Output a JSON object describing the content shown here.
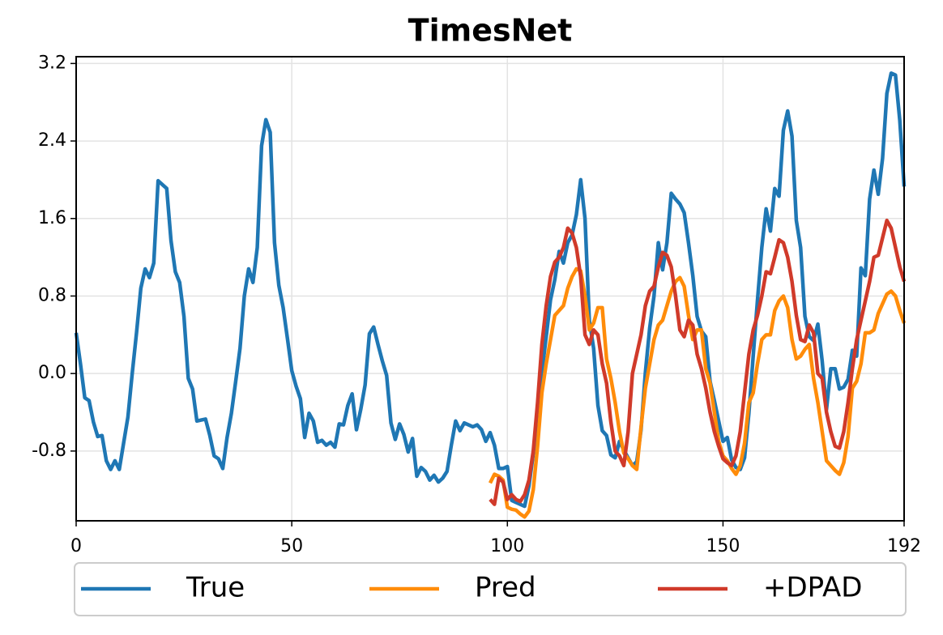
{
  "chart_data": {
    "type": "line",
    "title": "TimesNet",
    "x": [
      0,
      1,
      2,
      3,
      4,
      5,
      6,
      7,
      8,
      9,
      10,
      11,
      12,
      13,
      14,
      15,
      16,
      17,
      18,
      19,
      20,
      21,
      22,
      23,
      24,
      25,
      26,
      27,
      28,
      29,
      30,
      31,
      32,
      33,
      34,
      35,
      36,
      37,
      38,
      39,
      40,
      41,
      42,
      43,
      44,
      45,
      46,
      47,
      48,
      49,
      50,
      51,
      52,
      53,
      54,
      55,
      56,
      57,
      58,
      59,
      60,
      61,
      62,
      63,
      64,
      65,
      66,
      67,
      68,
      69,
      70,
      71,
      72,
      73,
      74,
      75,
      76,
      77,
      78,
      79,
      80,
      81,
      82,
      83,
      84,
      85,
      86,
      87,
      88,
      89,
      90,
      91,
      92,
      93,
      94,
      95,
      96,
      97,
      98,
      99,
      100,
      101,
      102,
      103,
      104,
      105,
      106,
      107,
      108,
      109,
      110,
      111,
      112,
      113,
      114,
      115,
      116,
      117,
      118,
      119,
      120,
      121,
      122,
      123,
      124,
      125,
      126,
      127,
      128,
      129,
      130,
      131,
      132,
      133,
      134,
      135,
      136,
      137,
      138,
      139,
      140,
      141,
      142,
      143,
      144,
      145,
      146,
      147,
      148,
      149,
      150,
      151,
      152,
      153,
      154,
      155,
      156,
      157,
      158,
      159,
      160,
      161,
      162,
      163,
      164,
      165,
      166,
      167,
      168,
      169,
      170,
      171,
      172,
      173,
      174,
      175,
      176,
      177,
      178,
      179,
      180,
      181,
      182,
      183,
      184,
      185,
      186,
      187,
      188,
      189,
      190,
      191,
      192
    ],
    "series": [
      {
        "name": "True",
        "color": "#1f77b4",
        "values": [
          0.42,
          0.1,
          -0.25,
          -0.28,
          -0.5,
          -0.65,
          -0.64,
          -0.9,
          -0.99,
          -0.9,
          -0.99,
          -0.72,
          -0.45,
          0.0,
          0.42,
          0.88,
          1.08,
          0.99,
          1.14,
          1.99,
          1.95,
          1.91,
          1.37,
          1.05,
          0.94,
          0.59,
          -0.05,
          -0.16,
          -0.49,
          -0.48,
          -0.47,
          -0.64,
          -0.85,
          -0.88,
          -0.98,
          -0.66,
          -0.41,
          -0.08,
          0.26,
          0.8,
          1.08,
          0.94,
          1.3,
          2.35,
          2.62,
          2.49,
          1.35,
          0.91,
          0.68,
          0.36,
          0.03,
          -0.13,
          -0.26,
          -0.66,
          -0.41,
          -0.49,
          -0.71,
          -0.69,
          -0.74,
          -0.71,
          -0.76,
          -0.52,
          -0.53,
          -0.33,
          -0.21,
          -0.58,
          -0.37,
          -0.12,
          0.41,
          0.48,
          0.3,
          0.13,
          -0.02,
          -0.51,
          -0.68,
          -0.52,
          -0.63,
          -0.81,
          -0.67,
          -1.06,
          -0.97,
          -1.01,
          -1.1,
          -1.05,
          -1.12,
          -1.08,
          -1.01,
          -0.74,
          -0.49,
          -0.59,
          -0.51,
          -0.53,
          -0.55,
          -0.53,
          -0.58,
          -0.7,
          -0.61,
          -0.74,
          -0.98,
          -0.98,
          -0.96,
          -1.31,
          -1.33,
          -1.35,
          -1.37,
          -1.16,
          -0.83,
          -0.49,
          0.01,
          0.38,
          0.76,
          0.97,
          1.26,
          1.14,
          1.35,
          1.43,
          1.64,
          2.0,
          1.6,
          0.55,
          0.26,
          -0.33,
          -0.59,
          -0.64,
          -0.84,
          -0.87,
          -0.7,
          -0.79,
          -0.87,
          -0.95,
          -0.91,
          -0.58,
          0.01,
          0.47,
          0.8,
          1.35,
          1.07,
          1.35,
          1.86,
          1.8,
          1.75,
          1.66,
          1.35,
          1.01,
          0.59,
          0.44,
          0.38,
          -0.08,
          -0.28,
          -0.49,
          -0.7,
          -0.66,
          -0.89,
          -0.97,
          -0.99,
          -0.87,
          -0.41,
          0.18,
          0.76,
          1.3,
          1.7,
          1.47,
          1.91,
          1.83,
          2.51,
          2.71,
          2.45,
          1.58,
          1.3,
          0.59,
          0.38,
          0.34,
          0.51,
          0.13,
          -0.37,
          0.05,
          0.05,
          -0.16,
          -0.14,
          -0.06,
          0.24,
          0.18,
          1.09,
          1.01,
          1.8,
          2.1,
          1.85,
          2.22,
          2.89,
          3.1,
          3.08,
          2.61,
          1.93
        ]
      },
      {
        "name": "Pred",
        "color": "#ff8c0a",
        "values": [
          null,
          null,
          null,
          null,
          null,
          null,
          null,
          null,
          null,
          null,
          null,
          null,
          null,
          null,
          null,
          null,
          null,
          null,
          null,
          null,
          null,
          null,
          null,
          null,
          null,
          null,
          null,
          null,
          null,
          null,
          null,
          null,
          null,
          null,
          null,
          null,
          null,
          null,
          null,
          null,
          null,
          null,
          null,
          null,
          null,
          null,
          null,
          null,
          null,
          null,
          null,
          null,
          null,
          null,
          null,
          null,
          null,
          null,
          null,
          null,
          null,
          null,
          null,
          null,
          null,
          null,
          null,
          null,
          null,
          null,
          null,
          null,
          null,
          null,
          null,
          null,
          null,
          null,
          null,
          null,
          null,
          null,
          null,
          null,
          null,
          null,
          null,
          null,
          null,
          null,
          null,
          null,
          null,
          null,
          null,
          null,
          -1.13,
          -1.04,
          -1.06,
          -1.1,
          -1.38,
          -1.4,
          -1.41,
          -1.45,
          -1.48,
          -1.42,
          -1.2,
          -0.75,
          -0.2,
          0.1,
          0.35,
          0.6,
          0.65,
          0.7,
          0.88,
          1.0,
          1.08,
          1.06,
          0.8,
          0.45,
          0.52,
          0.68,
          0.68,
          0.15,
          -0.05,
          -0.3,
          -0.6,
          -0.82,
          -0.88,
          -0.95,
          -0.99,
          -0.55,
          -0.15,
          0.1,
          0.35,
          0.5,
          0.55,
          0.7,
          0.85,
          0.95,
          0.99,
          0.9,
          0.6,
          0.35,
          0.45,
          0.45,
          0.05,
          -0.1,
          -0.4,
          -0.7,
          -0.85,
          -0.9,
          -0.98,
          -1.04,
          -0.95,
          -0.72,
          -0.3,
          -0.2,
          0.1,
          0.35,
          0.4,
          0.4,
          0.65,
          0.75,
          0.8,
          0.68,
          0.35,
          0.15,
          0.18,
          0.25,
          0.3,
          -0.05,
          -0.3,
          -0.6,
          -0.9,
          -0.95,
          -1.0,
          -1.04,
          -0.92,
          -0.65,
          -0.15,
          -0.08,
          0.1,
          0.42,
          0.42,
          0.45,
          0.62,
          0.72,
          0.82,
          0.85,
          0.8,
          0.65,
          0.52
        ]
      },
      {
        "name": "+DPAD",
        "color": "#d03a2a",
        "values": [
          null,
          null,
          null,
          null,
          null,
          null,
          null,
          null,
          null,
          null,
          null,
          null,
          null,
          null,
          null,
          null,
          null,
          null,
          null,
          null,
          null,
          null,
          null,
          null,
          null,
          null,
          null,
          null,
          null,
          null,
          null,
          null,
          null,
          null,
          null,
          null,
          null,
          null,
          null,
          null,
          null,
          null,
          null,
          null,
          null,
          null,
          null,
          null,
          null,
          null,
          null,
          null,
          null,
          null,
          null,
          null,
          null,
          null,
          null,
          null,
          null,
          null,
          null,
          null,
          null,
          null,
          null,
          null,
          null,
          null,
          null,
          null,
          null,
          null,
          null,
          null,
          null,
          null,
          null,
          null,
          null,
          null,
          null,
          null,
          null,
          null,
          null,
          null,
          null,
          null,
          null,
          null,
          null,
          null,
          null,
          null,
          -1.3,
          -1.35,
          -1.08,
          -1.12,
          -1.3,
          -1.25,
          -1.3,
          -1.32,
          -1.25,
          -1.1,
          -0.8,
          -0.3,
          0.3,
          0.7,
          1.0,
          1.15,
          1.2,
          1.3,
          1.5,
          1.45,
          1.3,
          1.0,
          0.4,
          0.3,
          0.45,
          0.4,
          0.1,
          -0.1,
          -0.5,
          -0.8,
          -0.85,
          -0.95,
          -0.6,
          0.0,
          0.2,
          0.4,
          0.7,
          0.85,
          0.9,
          1.1,
          1.25,
          1.22,
          1.1,
          0.8,
          0.45,
          0.38,
          0.55,
          0.5,
          0.2,
          0.05,
          -0.15,
          -0.4,
          -0.6,
          -0.75,
          -0.88,
          -0.92,
          -0.95,
          -0.85,
          -0.6,
          -0.2,
          0.2,
          0.45,
          0.6,
          0.8,
          1.05,
          1.03,
          1.2,
          1.38,
          1.35,
          1.2,
          0.95,
          0.6,
          0.35,
          0.33,
          0.5,
          0.42,
          0.0,
          -0.05,
          -0.4,
          -0.6,
          -0.75,
          -0.77,
          -0.6,
          -0.3,
          0.05,
          0.35,
          0.55,
          0.75,
          0.95,
          1.2,
          1.22,
          1.4,
          1.58,
          1.5,
          1.3,
          1.1,
          0.95
        ]
      }
    ],
    "xlim": [
      0,
      192
    ],
    "xticks": [
      0,
      50,
      100,
      150,
      192
    ],
    "ylim": [
      -1.52,
      3.27
    ],
    "yticks": [
      -0.8,
      {
        "value": 0,
        "label": "0.0"
      },
      0.8,
      1.6,
      2.4,
      3.2
    ],
    "grid": true,
    "legend": "lower center"
  }
}
